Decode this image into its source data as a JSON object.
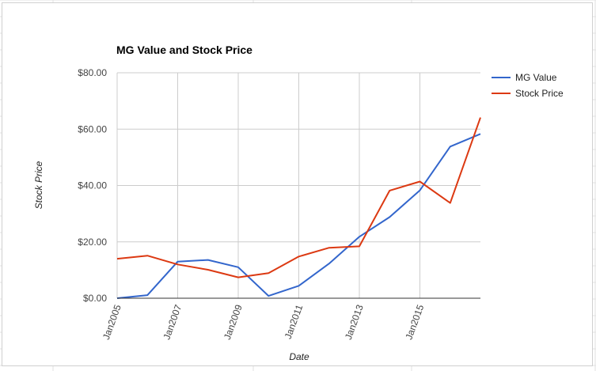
{
  "chart_data": {
    "type": "line",
    "title": "MG Value and Stock Price",
    "xlabel": "Date",
    "ylabel": "Stock Price",
    "ylim": [
      0,
      80
    ],
    "y_ticks": [
      "$0.00",
      "$20.00",
      "$40.00",
      "$60.00",
      "$80.00"
    ],
    "y_tick_values": [
      0,
      20,
      40,
      60,
      80
    ],
    "x_range": [
      2005,
      2017
    ],
    "x_ticks": [
      "Jan2005",
      "Jan2007",
      "Jan2009",
      "Jan2011",
      "Jan2013",
      "Jan2015"
    ],
    "x_tick_values": [
      2005,
      2007,
      2009,
      2011,
      2013,
      2015
    ],
    "grid": true,
    "legend_position": "right",
    "series": [
      {
        "name": "MG Value",
        "color": "#3366cc",
        "x": [
          2005,
          2006,
          2007,
          2008,
          2009,
          2010,
          2011,
          2012,
          2013,
          2014,
          2015,
          2016,
          2017
        ],
        "values": [
          0,
          1.1,
          13,
          13.6,
          11,
          0.8,
          4.4,
          12.3,
          21.8,
          28.8,
          38.3,
          53.8,
          58.3
        ]
      },
      {
        "name": "Stock Price",
        "color": "#dc3912",
        "x": [
          2005,
          2006,
          2007,
          2008,
          2009,
          2010,
          2011,
          2012,
          2013,
          2014,
          2015,
          2016,
          2017
        ],
        "values": [
          14,
          15.1,
          12,
          10.1,
          7.4,
          8.9,
          14.8,
          17.9,
          18.4,
          38.2,
          41.4,
          33.8,
          64.1
        ]
      }
    ]
  }
}
